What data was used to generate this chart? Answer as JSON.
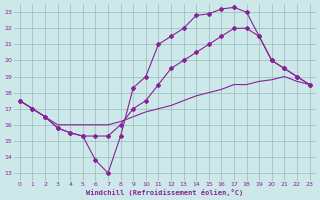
{
  "bg_color": "#cce8e8",
  "grid_color": "#99bbbb",
  "line_color": "#882299",
  "xlabel": "Windchill (Refroidissement éolien,°C)",
  "xlim": [
    -0.5,
    23.5
  ],
  "ylim": [
    12.5,
    23.5
  ],
  "xticks": [
    0,
    1,
    2,
    3,
    4,
    5,
    6,
    7,
    8,
    9,
    10,
    11,
    12,
    13,
    14,
    15,
    16,
    17,
    18,
    19,
    20,
    21,
    22,
    23
  ],
  "yticks": [
    13,
    14,
    15,
    16,
    17,
    18,
    19,
    20,
    21,
    22,
    23
  ],
  "line1_x": [
    0,
    1,
    2,
    3,
    4,
    5,
    6,
    7,
    8,
    9,
    10,
    11,
    12,
    13,
    14,
    15,
    16,
    17,
    18,
    19,
    20,
    21,
    22,
    23
  ],
  "line1_y": [
    17.5,
    17.0,
    16.5,
    15.8,
    15.5,
    15.3,
    13.8,
    13.0,
    15.3,
    18.3,
    19.0,
    21.0,
    21.5,
    22.0,
    22.8,
    22.9,
    23.2,
    23.3,
    23.0,
    21.5,
    20.0,
    19.5,
    19.0,
    18.5
  ],
  "line2_x": [
    0,
    1,
    2,
    3,
    4,
    5,
    6,
    7,
    8,
    9,
    10,
    11,
    12,
    13,
    14,
    15,
    16,
    17,
    18,
    19,
    20,
    21,
    22,
    23
  ],
  "line2_y": [
    17.5,
    17.0,
    16.5,
    15.8,
    15.5,
    15.3,
    15.3,
    15.3,
    16.0,
    17.0,
    17.5,
    18.5,
    19.5,
    20.0,
    20.5,
    21.0,
    21.5,
    22.0,
    22.0,
    21.5,
    20.0,
    19.5,
    19.0,
    18.5
  ],
  "line3_x": [
    0,
    1,
    2,
    3,
    4,
    5,
    6,
    7,
    8,
    9,
    10,
    11,
    12,
    13,
    14,
    15,
    16,
    17,
    18,
    19,
    20,
    21,
    22,
    23
  ],
  "line3_y": [
    17.5,
    17.0,
    16.5,
    16.0,
    16.0,
    16.0,
    16.0,
    16.0,
    16.2,
    16.5,
    16.8,
    17.0,
    17.2,
    17.5,
    17.8,
    18.0,
    18.2,
    18.5,
    18.5,
    18.7,
    18.8,
    19.0,
    18.7,
    18.5
  ]
}
